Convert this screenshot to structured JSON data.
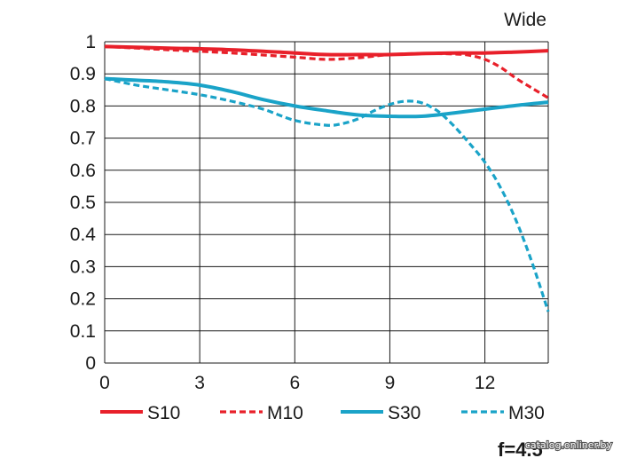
{
  "chart_data": {
    "type": "line",
    "title": "Wide",
    "xlim": [
      0,
      14
    ],
    "ylim": [
      0,
      1
    ],
    "grid": true,
    "legend_position": "bottom",
    "x_ticks": [
      "0",
      "3",
      "6",
      "9",
      "12"
    ],
    "y_ticks": [
      "0",
      "0.1",
      "0.2",
      "0.3",
      "0.4",
      "0.5",
      "0.6",
      "0.7",
      "0.8",
      "0.9",
      "1"
    ],
    "series": [
      {
        "name": "S10",
        "color": "#e8202a",
        "dash": "solid",
        "x": [
          0,
          2,
          4,
          6,
          7,
          8,
          9,
          10,
          11,
          12,
          13,
          14
        ],
        "y": [
          0.985,
          0.98,
          0.975,
          0.965,
          0.96,
          0.96,
          0.96,
          0.963,
          0.965,
          0.965,
          0.968,
          0.972
        ]
      },
      {
        "name": "M10",
        "color": "#e8202a",
        "dash": "dashed",
        "x": [
          0,
          2,
          4,
          6,
          7,
          8,
          9,
          10,
          11,
          11.5,
          12,
          12.5,
          13,
          13.5,
          14
        ],
        "y": [
          0.985,
          0.975,
          0.965,
          0.952,
          0.945,
          0.95,
          0.96,
          0.963,
          0.962,
          0.958,
          0.945,
          0.92,
          0.885,
          0.855,
          0.825
        ]
      },
      {
        "name": "S30",
        "color": "#1aa3c8",
        "dash": "solid",
        "x": [
          0,
          1,
          2,
          3,
          4,
          5,
          6,
          7,
          8,
          9,
          10,
          11,
          12,
          13,
          14
        ],
        "y": [
          0.885,
          0.88,
          0.875,
          0.865,
          0.845,
          0.82,
          0.8,
          0.785,
          0.772,
          0.768,
          0.768,
          0.778,
          0.79,
          0.802,
          0.812
        ]
      },
      {
        "name": "M30",
        "color": "#1aa3c8",
        "dash": "dashed",
        "x": [
          0,
          1,
          2,
          3,
          4,
          5,
          6,
          7,
          7.5,
          8,
          8.5,
          9,
          9.5,
          10,
          10.5,
          11,
          11.5,
          12,
          12.5,
          13,
          13.5,
          14
        ],
        "y": [
          0.885,
          0.865,
          0.85,
          0.835,
          0.815,
          0.79,
          0.755,
          0.74,
          0.745,
          0.76,
          0.785,
          0.805,
          0.815,
          0.81,
          0.785,
          0.74,
          0.685,
          0.625,
          0.545,
          0.44,
          0.31,
          0.16
        ]
      }
    ]
  },
  "aperture_label": "f=4.5",
  "watermark": "catalog.onliner.by"
}
